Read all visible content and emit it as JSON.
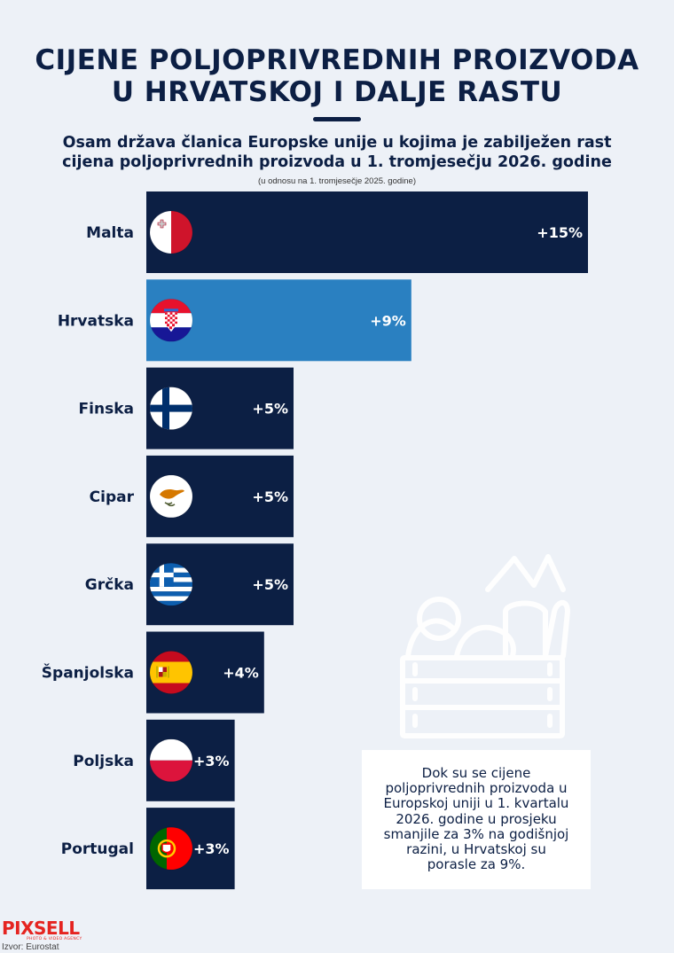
{
  "header": {
    "title_line1": "CIJENE POLJOPRIVREDNIH PROIZVODA",
    "title_line2": "U HRVATSKOJ I DALJE RASTU",
    "subtitle_line1": "Osam država članica Europske unije u kojima je zabilježen rast",
    "subtitle_line2": "cijena poljoprivrednih proizvoda u 1. tromjesečju 2026. godine",
    "note": "(u odnosu na 1. tromjesečje 2025. godine)"
  },
  "chart_data": {
    "type": "bar",
    "orientation": "horizontal",
    "categories": [
      "Malta",
      "Hrvatska",
      "Finska",
      "Cipar",
      "Grčka",
      "Španjolska",
      "Poljska",
      "Portugal"
    ],
    "values": [
      15,
      9,
      5,
      5,
      5,
      4,
      3,
      3
    ],
    "value_labels": [
      "+15%",
      "+9%",
      "+5%",
      "+5%",
      "+5%",
      "+4%",
      "+3%",
      "+3%"
    ],
    "flags": [
      "flag-malta-icon",
      "flag-croatia-icon",
      "flag-finland-icon",
      "flag-cyprus-icon",
      "flag-greece-icon",
      "flag-spain-icon",
      "flag-poland-icon",
      "flag-portugal-icon"
    ],
    "highlight": "Hrvatska",
    "colors": {
      "bar": "#0c1f44",
      "highlight": "#2a80c1",
      "background": "#edf1f7"
    }
  },
  "info_box": {
    "text_lines": [
      "Dok su se cijene",
      "poljoprivrednih proizvoda u",
      "Europskoj uniji u 1. kvartalu",
      "2026. godine u prosjeku",
      "smanjile za 3% na godišnjoj",
      "razini, u Hrvatskoj su",
      "porasle za 9%."
    ]
  },
  "footer": {
    "logo": "PIXSELL",
    "logo_tagline": "PHOTO & VIDEO AGENCY",
    "source": "Izvor: Eurostat"
  }
}
